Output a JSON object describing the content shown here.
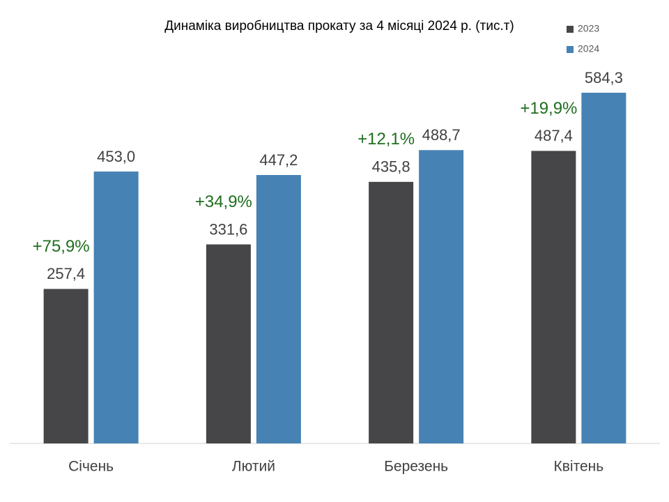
{
  "chart_data": {
    "type": "bar",
    "title": "Динаміка виробництва прокату за 4 місяці 2024 р. (тис.т)",
    "categories": [
      "Січень",
      "Лютий",
      "Березень",
      "Квітень"
    ],
    "series": [
      {
        "name": "2023",
        "color": "#464648",
        "values": [
          257.4,
          331.6,
          435.8,
          487.4
        ],
        "value_labels": [
          "257,4",
          "331,6",
          "435,8",
          "487,4"
        ]
      },
      {
        "name": "2024",
        "color": "#4682b4",
        "values": [
          453.0,
          447.2,
          488.7,
          584.3
        ],
        "value_labels": [
          "453,0",
          "447,2",
          "488,7",
          "584,3"
        ]
      }
    ],
    "annotations": [
      "+75,9%",
      "+34,9%",
      "+12,1%",
      "+19,9%"
    ],
    "annotation_color": "#1f6e1f",
    "legend": "top-right"
  }
}
